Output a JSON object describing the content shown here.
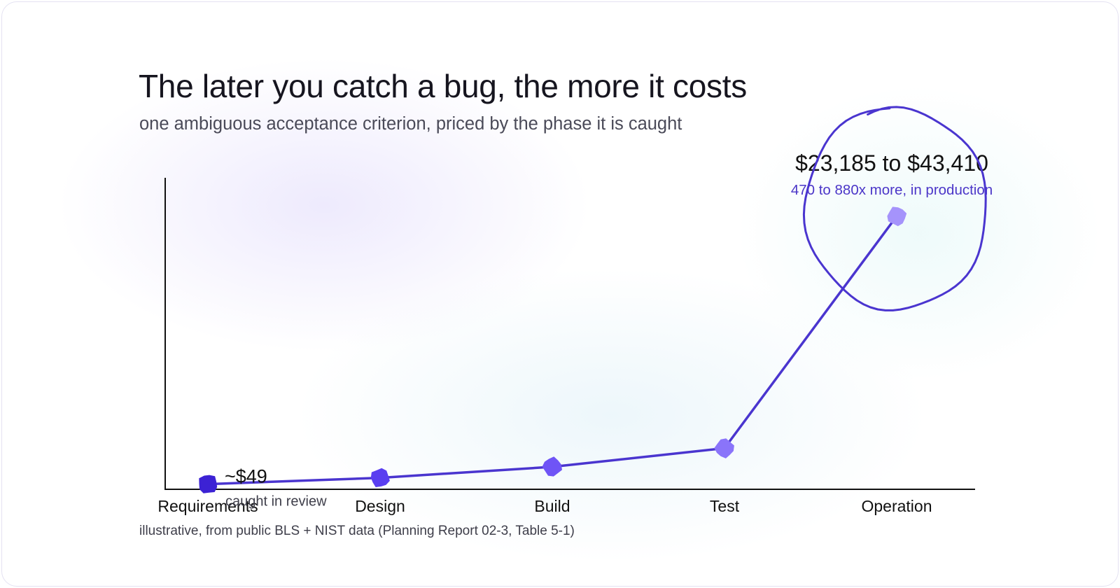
{
  "title": "The later you catch a bug, the more it costs",
  "subtitle": "one ambiguous acceptance criterion, priced by the phase it is caught",
  "source": "illustrative, from public BLS + NIST data (Planning Report 02-3, Table 5-1)",
  "colors": {
    "line": "#4a35cf",
    "accent_text": "#4b36c8",
    "axis": "#111111",
    "points": [
      "#3c22d4",
      "#5a3ff0",
      "#6f54f6",
      "#8a74fa",
      "#a593fb"
    ]
  },
  "chart_data": {
    "type": "line",
    "title": "The later you catch a bug, the more it costs",
    "subtitle": "one ambiguous acceptance criterion, priced by the phase it is caught",
    "xlabel": "",
    "ylabel": "",
    "categories": [
      "Requirements",
      "Design",
      "Build",
      "Test",
      "Operation"
    ],
    "series": [
      {
        "values": [
          49,
          590,
          1540,
          3150,
          23185
        ]
      }
    ],
    "ylim": [
      -400,
      26500
    ],
    "grid": false,
    "legend": "none",
    "annotations": [
      {
        "category": "Requirements",
        "label": "~$49",
        "note": "caught in review"
      },
      {
        "category": "Operation",
        "label": "$23,185 to $43,410",
        "note": "470 to 880x more, in production",
        "circled": true
      }
    ]
  }
}
